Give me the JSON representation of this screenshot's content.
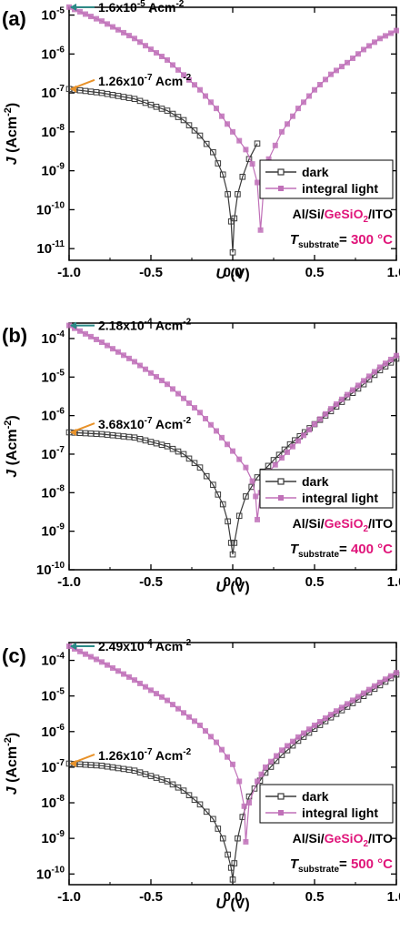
{
  "figure": {
    "colors": {
      "dark": "#3a3a3a",
      "light": "#c070b8",
      "accent": "#e0157a",
      "teal": "#2a8a86",
      "orange": "#e8922a"
    }
  },
  "chart_data": [
    {
      "type": "line",
      "panel_label": "(a)",
      "xlabel": "U (V)",
      "ylabel": "J (Acm-2)",
      "xlim": [
        -1.0,
        1.0
      ],
      "ylim_log10": [
        -11.3,
        -4.8
      ],
      "y_scale": "log",
      "xticks": [
        "-1.0",
        "-0.5",
        "0.0",
        "0.5",
        "1.0"
      ],
      "yticks": [
        {
          "exp": -11,
          "label": "-11"
        },
        {
          "exp": -10,
          "label": "-10"
        },
        {
          "exp": -9,
          "label": "-9"
        },
        {
          "exp": -8,
          "label": "-8"
        },
        {
          "exp": -7,
          "label": "-7"
        },
        {
          "exp": -6,
          "label": "-6"
        },
        {
          "exp": -5,
          "label": "-5"
        }
      ],
      "legend": {
        "placement": "right",
        "entries": [
          "dark",
          "integral light"
        ]
      },
      "annotations": [
        {
          "text": "1.6x10",
          "sup": "-5",
          "unit": " Acm",
          "unit_sup": "-2",
          "x": -1.0,
          "y": 1.6e-05,
          "color": "teal"
        },
        {
          "text": "1.26x10",
          "sup": "-7",
          "unit": " Acm",
          "unit_sup": "-2",
          "x": -1.0,
          "y": 1.26e-07,
          "color": "orange"
        }
      ],
      "device": {
        "part1": "Al/Si/",
        "part2": "GeSiO",
        "sub": "2",
        "part3": "/ITO"
      },
      "substrate": {
        "T": "T",
        "sub": "substrate",
        "eq": "= ",
        "value": "300 °C"
      },
      "series": [
        {
          "name": "dark",
          "zero_x": 0.0,
          "points": [
            [
              -1.0,
              1.26e-07
            ],
            [
              -0.8,
              1e-07
            ],
            [
              -0.6,
              7e-08
            ],
            [
              -0.4,
              3.5e-08
            ],
            [
              -0.3,
              2e-08
            ],
            [
              -0.2,
              8e-09
            ],
            [
              -0.12,
              3e-09
            ],
            [
              -0.06,
              8e-10
            ],
            [
              -0.03,
              2.5e-10
            ],
            [
              -0.01,
              5e-11
            ],
            [
              0.0,
              8e-12
            ],
            [
              0.01,
              6e-11
            ],
            [
              0.03,
              2.5e-10
            ],
            [
              0.06,
              7e-10
            ],
            [
              0.1,
              2e-09
            ],
            [
              0.15,
              5e-09
            ]
          ]
        },
        {
          "name": "integral light",
          "zero_x": 0.17,
          "points": [
            [
              -1.0,
              1.6e-05
            ],
            [
              -0.8,
              7e-06
            ],
            [
              -0.6,
              2.5e-06
            ],
            [
              -0.4,
              7e-07
            ],
            [
              -0.2,
              1.2e-07
            ],
            [
              -0.1,
              4e-08
            ],
            [
              0.0,
              1e-08
            ],
            [
              0.08,
              3.5e-09
            ],
            [
              0.12,
              1.5e-09
            ],
            [
              0.15,
              5e-10
            ],
            [
              0.17,
              3e-11
            ],
            [
              0.19,
              4e-10
            ],
            [
              0.22,
              2e-09
            ],
            [
              0.3,
              1e-08
            ],
            [
              0.4,
              4e-08
            ],
            [
              0.5,
              1.2e-07
            ],
            [
              0.6,
              3e-07
            ],
            [
              0.7,
              6e-07
            ],
            [
              0.8,
              1.3e-06
            ],
            [
              0.9,
              2.5e-06
            ],
            [
              1.0,
              4e-06
            ]
          ]
        }
      ]
    },
    {
      "type": "line",
      "panel_label": "(b)",
      "xlabel": "U (V)",
      "ylabel": "J (Acm-2)",
      "xlim": [
        -1.0,
        1.0
      ],
      "ylim_log10": [
        -10.0,
        -3.6
      ],
      "y_scale": "log",
      "xticks": [
        "-1.0",
        "-0.5",
        "0.0",
        "0.5",
        "1.0"
      ],
      "yticks": [
        {
          "exp": -10,
          "label": "-10"
        },
        {
          "exp": -9,
          "label": "-9"
        },
        {
          "exp": -8,
          "label": "-8"
        },
        {
          "exp": -7,
          "label": "-7"
        },
        {
          "exp": -6,
          "label": "-6"
        },
        {
          "exp": -5,
          "label": "-5"
        },
        {
          "exp": -4,
          "label": "-4"
        }
      ],
      "legend": {
        "placement": "right",
        "entries": [
          "dark",
          "integral light"
        ]
      },
      "annotations": [
        {
          "text": "2.18x10",
          "sup": "-4",
          "unit": " Acm",
          "unit_sup": "-2",
          "x": -1.0,
          "y": 0.000218,
          "color": "teal"
        },
        {
          "text": "3.68x10",
          "sup": "-7",
          "unit": " Acm",
          "unit_sup": "-2",
          "x": -1.0,
          "y": 3.68e-07,
          "color": "orange"
        }
      ],
      "device": {
        "part1": "Al/Si/",
        "part2": "GeSiO",
        "sub": "2",
        "part3": "/ITO"
      },
      "substrate": {
        "T": "T",
        "sub": "substrate",
        "eq": "= ",
        "value": "400 °C"
      },
      "series": [
        {
          "name": "dark",
          "zero_x": 0.0,
          "points": [
            [
              -1.0,
              3.68e-07
            ],
            [
              -0.8,
              3.3e-07
            ],
            [
              -0.6,
              2.7e-07
            ],
            [
              -0.4,
              1.6e-07
            ],
            [
              -0.3,
              1e-07
            ],
            [
              -0.2,
              4.5e-08
            ],
            [
              -0.12,
              1.6e-08
            ],
            [
              -0.06,
              5e-09
            ],
            [
              -0.03,
              1.8e-09
            ],
            [
              -0.01,
              5e-10
            ],
            [
              0.0,
              2.5e-10
            ],
            [
              0.01,
              5e-10
            ],
            [
              0.04,
              2.5e-09
            ],
            [
              0.08,
              8e-09
            ],
            [
              0.15,
              2.5e-08
            ],
            [
              0.25,
              7e-08
            ],
            [
              0.35,
              1.8e-07
            ],
            [
              0.5,
              6e-07
            ],
            [
              0.6,
              1.3e-06
            ],
            [
              0.7,
              3e-06
            ],
            [
              0.8,
              6.5e-06
            ],
            [
              0.9,
              1.5e-05
            ],
            [
              1.0,
              3e-05
            ]
          ]
        },
        {
          "name": "integral light",
          "zero_x": 0.15,
          "points": [
            [
              -1.0,
              0.000218
            ],
            [
              -0.8,
              8e-05
            ],
            [
              -0.6,
              2.5e-05
            ],
            [
              -0.4,
              6.5e-06
            ],
            [
              -0.2,
              1.2e-06
            ],
            [
              -0.1,
              4e-07
            ],
            [
              0.0,
              1.2e-07
            ],
            [
              0.08,
              4.5e-08
            ],
            [
              0.12,
              2e-08
            ],
            [
              0.14,
              8e-09
            ],
            [
              0.15,
              2e-09
            ],
            [
              0.17,
              1e-08
            ],
            [
              0.22,
              3.5e-08
            ],
            [
              0.3,
              8e-08
            ],
            [
              0.4,
              2.2e-07
            ],
            [
              0.5,
              6e-07
            ],
            [
              0.6,
              1.5e-06
            ],
            [
              0.7,
              3.5e-06
            ],
            [
              0.8,
              8e-06
            ],
            [
              0.9,
              1.8e-05
            ],
            [
              1.0,
              3.6e-05
            ]
          ]
        }
      ]
    },
    {
      "type": "line",
      "panel_label": "(c)",
      "xlabel": "U (V)",
      "ylabel": "J (Acm-2)",
      "xlim": [
        -1.0,
        1.0
      ],
      "ylim_log10": [
        -10.3,
        -3.5
      ],
      "y_scale": "log",
      "xticks": [
        "-1.0",
        "-0.5",
        "0.0",
        "0.5",
        "1.0"
      ],
      "yticks": [
        {
          "exp": -10,
          "label": "-10"
        },
        {
          "exp": -9,
          "label": "-9"
        },
        {
          "exp": -8,
          "label": "-8"
        },
        {
          "exp": -7,
          "label": "-7"
        },
        {
          "exp": -6,
          "label": "-6"
        },
        {
          "exp": -5,
          "label": "-5"
        },
        {
          "exp": -4,
          "label": "-4"
        }
      ],
      "legend": {
        "placement": "right",
        "entries": [
          "dark",
          "integral light"
        ]
      },
      "annotations": [
        {
          "text": "2.49x10",
          "sup": "-4",
          "unit": " Acm",
          "unit_sup": "-2",
          "x": -1.0,
          "y": 0.000249,
          "color": "teal"
        },
        {
          "text": "1.26x10",
          "sup": "-7",
          "unit": " Acm",
          "unit_sup": "-2",
          "x": -1.0,
          "y": 1.26e-07,
          "color": "orange"
        }
      ],
      "device": {
        "part1": "Al/Si/",
        "part2": "GeSiO",
        "sub": "2",
        "part3": "/ITO"
      },
      "substrate": {
        "T": "T",
        "sub": "substrate",
        "eq": "= ",
        "value": "500 °C"
      },
      "series": [
        {
          "name": "dark",
          "zero_x": 0.0,
          "points": [
            [
              -1.0,
              1.26e-07
            ],
            [
              -0.8,
              1.1e-07
            ],
            [
              -0.6,
              8e-08
            ],
            [
              -0.4,
              4e-08
            ],
            [
              -0.3,
              2.2e-08
            ],
            [
              -0.2,
              9e-09
            ],
            [
              -0.12,
              3.5e-09
            ],
            [
              -0.06,
              1e-09
            ],
            [
              -0.03,
              3.5e-10
            ],
            [
              -0.01,
              1.5e-10
            ],
            [
              0.0,
              7e-11
            ],
            [
              0.01,
              2e-10
            ],
            [
              0.03,
              1e-09
            ],
            [
              0.06,
              4e-09
            ],
            [
              0.1,
              1.5e-08
            ],
            [
              0.2,
              7e-08
            ],
            [
              0.3,
              2.2e-07
            ],
            [
              0.4,
              5.5e-07
            ],
            [
              0.5,
              1.2e-06
            ],
            [
              0.6,
              2.5e-06
            ],
            [
              0.7,
              5e-06
            ],
            [
              0.8,
              1e-05
            ],
            [
              0.9,
              2e-05
            ],
            [
              1.0,
              4e-05
            ]
          ]
        },
        {
          "name": "integral light",
          "zero_x": 0.08,
          "points": [
            [
              -1.0,
              0.000249
            ],
            [
              -0.8,
              9e-05
            ],
            [
              -0.6,
              2.8e-05
            ],
            [
              -0.4,
              7.5e-06
            ],
            [
              -0.2,
              1.5e-06
            ],
            [
              -0.1,
              5e-07
            ],
            [
              0.0,
              1.2e-07
            ],
            [
              0.04,
              4e-08
            ],
            [
              0.07,
              8e-09
            ],
            [
              0.08,
              8e-10
            ],
            [
              0.1,
              1e-08
            ],
            [
              0.15,
              4e-08
            ],
            [
              0.2,
              1e-07
            ],
            [
              0.3,
              3e-07
            ],
            [
              0.4,
              7e-07
            ],
            [
              0.5,
              1.5e-06
            ],
            [
              0.6,
              3e-06
            ],
            [
              0.7,
              6e-06
            ],
            [
              0.8,
              1.2e-05
            ],
            [
              0.9,
              2.4e-05
            ],
            [
              1.0,
              4.5e-05
            ]
          ]
        }
      ]
    }
  ]
}
